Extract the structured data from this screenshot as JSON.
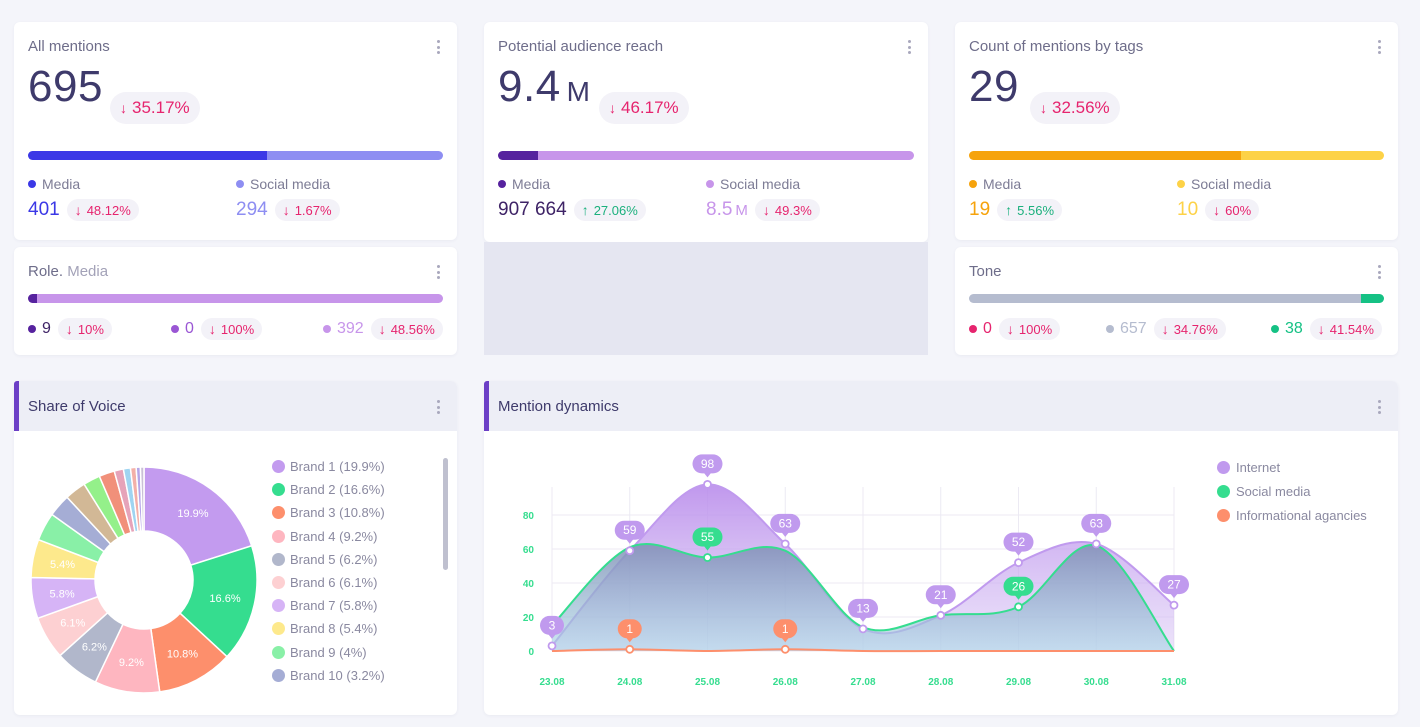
{
  "all_mentions": {
    "title": "All mentions",
    "value": "695",
    "change": "35.17%",
    "media_label": "Media",
    "social_label": "Social media",
    "media_value": "401",
    "media_change": "48.12%",
    "social_value": "294",
    "social_change": "1.67%",
    "media_share": 57.7,
    "colors": {
      "media": "#3b38e6",
      "social": "#8e8ef2"
    }
  },
  "reach": {
    "title": "Potential audience reach",
    "value": "9.4",
    "unit": "M",
    "change": "46.17%",
    "media_label": "Media",
    "social_label": "Social media",
    "media_value": "907 664",
    "media_change": "27.06%",
    "social_value": "8.5",
    "social_unit": "M",
    "social_change": "49.3%",
    "media_share": 9.6,
    "colors": {
      "media": "#56229e",
      "social": "#c795ea"
    }
  },
  "tags": {
    "title": "Count of mentions by tags",
    "value": "29",
    "change": "32.56%",
    "media_label": "Media",
    "social_label": "Social media",
    "media_value": "19",
    "media_change": "5.56%",
    "social_value": "10",
    "social_change": "60%",
    "media_share": 65.5,
    "colors": {
      "media": "#f6a30c",
      "social": "#fdd247"
    }
  },
  "role": {
    "title": "Role.",
    "subtitle": "Media",
    "items": [
      {
        "value": "9",
        "change": "10%",
        "color": "#56229e"
      },
      {
        "value": "0",
        "change": "100%",
        "color": "#9a56d4"
      },
      {
        "value": "392",
        "change": "48.56%",
        "color": "#c795ea"
      }
    ],
    "shares": [
      2.2,
      0,
      97.8
    ]
  },
  "tone": {
    "title": "Tone",
    "items": [
      {
        "value": "0",
        "change": "100%",
        "color": "#e6246e"
      },
      {
        "value": "657",
        "change": "34.76%",
        "color": "#b5bccf"
      },
      {
        "value": "38",
        "change": "41.54%",
        "color": "#15c184"
      }
    ],
    "shares": [
      0,
      94.5,
      5.5
    ]
  },
  "share_of_voice": {
    "title": "Share of Voice",
    "legend": [
      {
        "label": "Brand 1 (19.9%)",
        "color": "#c39bef"
      },
      {
        "label": "Brand 2 (16.6%)",
        "color": "#35dd8f"
      },
      {
        "label": "Brand 3 (10.8%)",
        "color": "#fd8f6c"
      },
      {
        "label": "Brand 4 (9.2%)",
        "color": "#feb6c0"
      },
      {
        "label": "Brand 5 (6.2%)",
        "color": "#b1b7cb"
      },
      {
        "label": "Brand 6 (6.1%)",
        "color": "#fdd0d2"
      },
      {
        "label": "Brand 7 (5.8%)",
        "color": "#d6b4f6"
      },
      {
        "label": "Brand 8 (5.4%)",
        "color": "#fde98c"
      },
      {
        "label": "Brand 9 (4%)",
        "color": "#89f0a7"
      },
      {
        "label": "Brand 10 (3.2%)",
        "color": "#a5add5"
      }
    ]
  },
  "chart_data": {
    "type": "area",
    "title": "Mention dynamics",
    "categories": [
      "23.08",
      "24.08",
      "25.08",
      "26.08",
      "27.08",
      "28.08",
      "29.08",
      "30.08",
      "31.08"
    ],
    "ylim": [
      0,
      100
    ],
    "yticks": [
      0,
      20,
      40,
      60,
      80
    ],
    "series": [
      {
        "name": "Internet",
        "color": "#c09aee",
        "values": [
          3,
          59,
          98,
          63,
          13,
          21,
          52,
          63,
          27
        ]
      },
      {
        "name": "Social media",
        "color": "#35dd8f",
        "values": [
          15,
          61,
          55,
          59,
          14,
          21,
          26,
          62,
          0
        ]
      },
      {
        "name": "Informational agancies",
        "color": "#fd8f6c",
        "values": [
          0,
          1,
          0,
          1,
          0,
          0,
          0,
          0,
          0
        ]
      }
    ],
    "point_labels": {
      "Internet": [
        "3",
        "59",
        "98",
        "63",
        "13",
        "21",
        "52",
        "63",
        "27"
      ],
      "Social media": [
        "",
        "",
        "55",
        "",
        "",
        "",
        "26",
        "",
        ""
      ],
      "Informational agancies": [
        "",
        "1",
        "",
        "1",
        "",
        "",
        "",
        "",
        ""
      ]
    }
  },
  "pie_data": {
    "type": "pie",
    "labels": [
      "19.9%",
      "16.6%",
      "10.8%",
      "9.2%",
      "6.2%",
      "6.1%",
      "5.8%",
      "5.4%",
      "",
      "",
      "",
      "",
      "",
      "",
      "",
      "",
      "",
      ""
    ],
    "values": [
      19.9,
      16.6,
      10.8,
      9.2,
      6.2,
      6.1,
      5.8,
      5.4,
      4.0,
      3.2,
      3.0,
      2.4,
      2.2,
      1.3,
      1.0,
      0.8,
      0.6,
      0.5
    ],
    "colors": [
      "#c39bef",
      "#35dd8f",
      "#fd8f6c",
      "#feb6c0",
      "#b1b7cb",
      "#fdd0d2",
      "#d6b4f6",
      "#fde98c",
      "#89f0a7",
      "#a5add5",
      "#d2b896",
      "#94f08a",
      "#f1907a",
      "#e6a3b9",
      "#9fd4f1",
      "#f3b0a8",
      "#b6a6e8",
      "#c9c0d6"
    ]
  }
}
